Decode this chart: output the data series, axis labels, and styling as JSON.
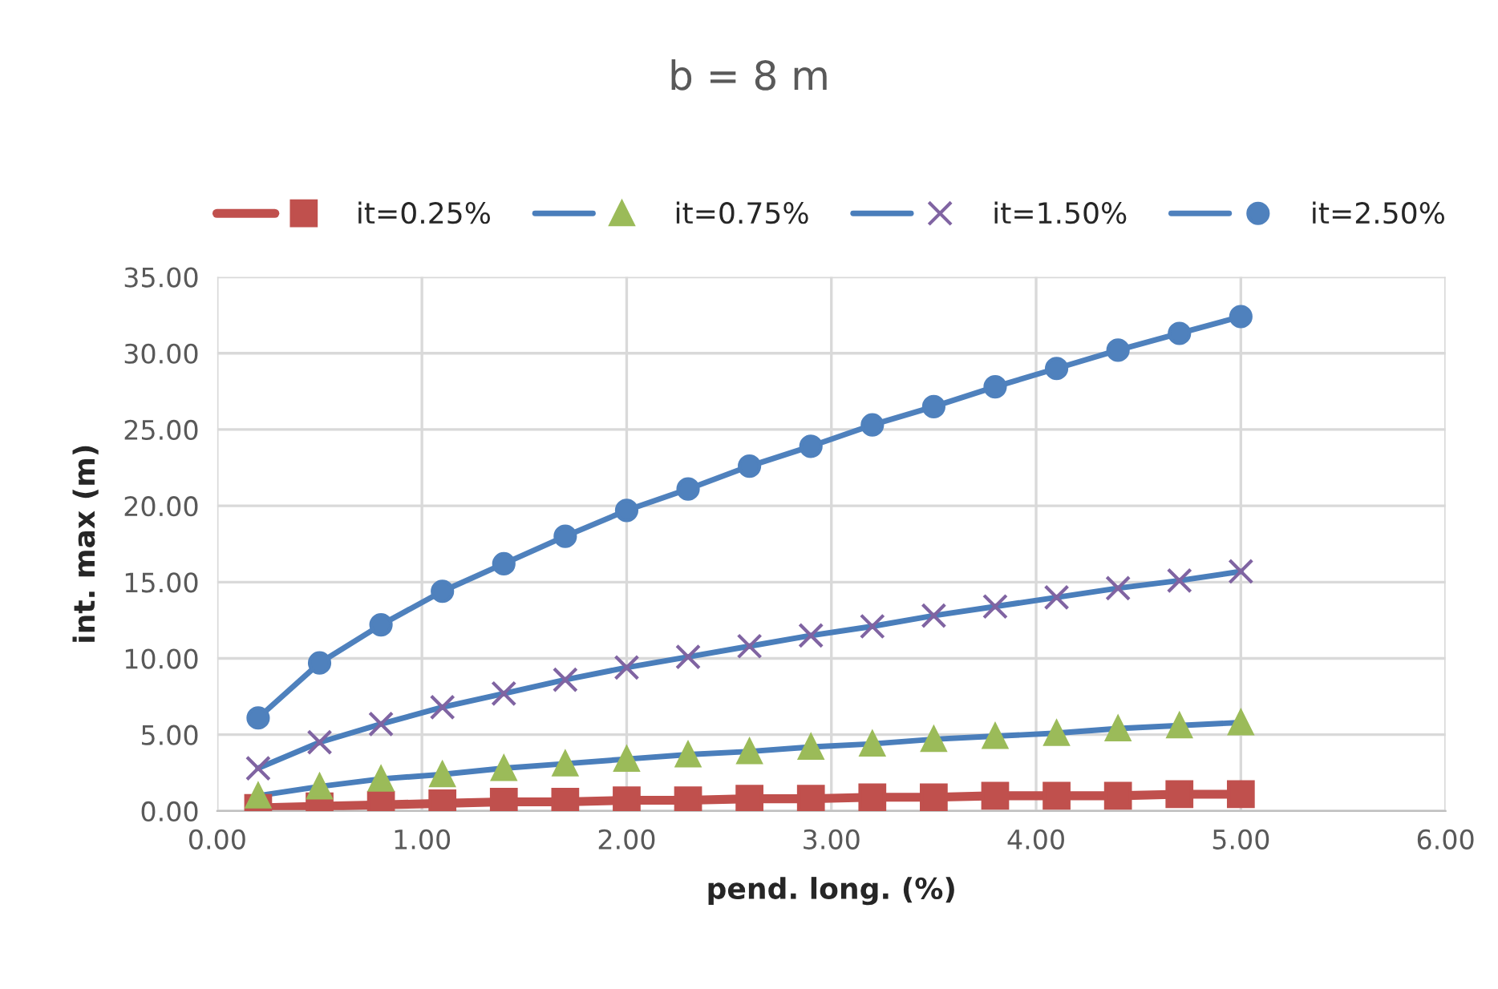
{
  "chart_data": {
    "type": "line",
    "title": "b = 8 m",
    "xlabel": "pend. long. (%)",
    "ylabel": "int. max (m)",
    "x": [
      0.2,
      0.5,
      0.8,
      1.1,
      1.4,
      1.7,
      2.0,
      2.3,
      2.6,
      2.9,
      3.2,
      3.5,
      3.8,
      4.1,
      4.4,
      4.7,
      5.0
    ],
    "series": [
      {
        "name": "it=0.25%",
        "color": "#c0504d",
        "marker": "square",
        "values": [
          0.2,
          0.3,
          0.4,
          0.5,
          0.6,
          0.6,
          0.7,
          0.7,
          0.8,
          0.8,
          0.9,
          0.9,
          1.0,
          1.0,
          1.0,
          1.1,
          1.1
        ]
      },
      {
        "name": "it=0.75%",
        "color": "#4a7ebb",
        "colors": [
          "#9bbb59",
          "#9bbb59",
          "#9bbb59",
          "#9bbb59",
          "#9bbb59",
          "#9bbb59",
          "#9bbb59",
          "#9bbb59",
          "#9bbb59",
          "#9bbb59",
          "#9bbb59",
          "#9bbb59",
          "#9bbb59",
          "#9bbb59",
          "#9bbb59",
          "#9bbb59",
          "#9bbb59"
        ],
        "marker": "triangle",
        "values": [
          1.0,
          1.6,
          2.1,
          2.4,
          2.8,
          3.1,
          3.4,
          3.7,
          3.9,
          4.2,
          4.4,
          4.7,
          4.9,
          5.1,
          5.4,
          5.6,
          5.8
        ]
      },
      {
        "name": "it=1.50%",
        "color": "#4a7ebb",
        "colors": [
          "#8064a2",
          "#8064a2",
          "#8064a2",
          "#8064a2",
          "#8064a2",
          "#8064a2",
          "#8064a2",
          "#8064a2",
          "#8064a2",
          "#8064a2",
          "#8064a2",
          "#8064a2",
          "#8064a2",
          "#8064a2",
          "#8064a2",
          "#8064a2",
          "#8064a2"
        ],
        "marker": "cross",
        "values": [
          2.8,
          4.5,
          5.7,
          6.8,
          7.7,
          8.6,
          9.4,
          10.1,
          10.8,
          11.5,
          12.1,
          12.8,
          13.4,
          14.0,
          14.6,
          15.1,
          15.7
        ]
      },
      {
        "name": "it=2.50%",
        "color": "#4f81bd",
        "marker": "circle",
        "values": [
          6.1,
          9.7,
          12.2,
          14.4,
          16.2,
          18.0,
          19.7,
          21.1,
          22.6,
          23.9,
          25.3,
          26.5,
          27.8,
          29.0,
          30.2,
          31.3,
          32.4
        ]
      }
    ],
    "xlim": [
      0,
      6
    ],
    "xticks": [
      {
        "value": 0,
        "label": "0.00"
      },
      {
        "value": 1,
        "label": "1.00"
      },
      {
        "value": 2,
        "label": "2.00"
      },
      {
        "value": 3,
        "label": "3.00"
      },
      {
        "value": 4,
        "label": "4.00"
      },
      {
        "value": 5,
        "label": "5.00"
      },
      {
        "value": 6,
        "label": "6.00"
      }
    ],
    "ylim": [
      0,
      35
    ],
    "yticks": [
      {
        "value": 0,
        "label": "0.00"
      },
      {
        "value": 5,
        "label": "5.00"
      },
      {
        "value": 10,
        "label": "10.00"
      },
      {
        "value": 15,
        "label": "15.00"
      },
      {
        "value": 20,
        "label": "20.00"
      },
      {
        "value": 25,
        "label": "25.00"
      },
      {
        "value": 30,
        "label": "30.00"
      },
      {
        "value": 35,
        "label": "35.00"
      }
    ],
    "grid": true,
    "legend": "top"
  }
}
